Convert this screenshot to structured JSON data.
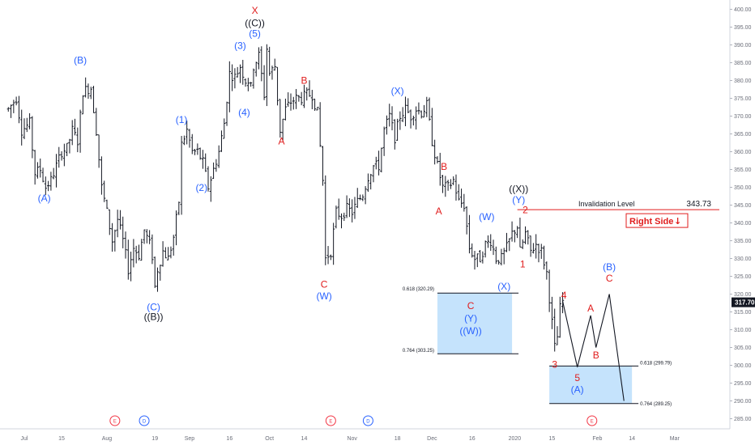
{
  "chart_data": {
    "type": "candlestick",
    "title": "",
    "xlabel": "",
    "ylabel": "",
    "ylim": [
      283,
      403
    ],
    "y_ticks": [
      "400.00",
      "395.00",
      "390.00",
      "385.00",
      "380.00",
      "375.00",
      "370.00",
      "365.00",
      "360.00",
      "355.00",
      "350.00",
      "345.00",
      "340.00",
      "335.00",
      "330.00",
      "325.00",
      "320.00",
      "315.00",
      "310.00",
      "305.00",
      "300.00",
      "295.00",
      "290.00",
      "285.00"
    ],
    "x_ticks": [
      {
        "label": "Jul",
        "d": 0
      },
      {
        "label": "15",
        "d": 14
      },
      {
        "label": "Aug",
        "d": 31
      },
      {
        "label": "19",
        "d": 49
      },
      {
        "label": "Sep",
        "d": 62
      },
      {
        "label": "16",
        "d": 77
      },
      {
        "label": "Oct",
        "d": 92
      },
      {
        "label": "14",
        "d": 105
      },
      {
        "label": "Nov",
        "d": 123
      },
      {
        "label": "18",
        "d": 140
      },
      {
        "label": "Dec",
        "d": 153
      },
      {
        "label": "16",
        "d": 168
      },
      {
        "label": "2020",
        "d": 184
      },
      {
        "label": "15",
        "d": 198
      },
      {
        "label": "Feb",
        "d": 215
      },
      {
        "label": "14",
        "d": 228
      },
      {
        "label": "Mar",
        "d": 244
      }
    ],
    "price_path": [
      [
        -6,
        372
      ],
      [
        -3,
        375
      ],
      [
        -1,
        366
      ],
      [
        2,
        368
      ],
      [
        4,
        354
      ],
      [
        6,
        355
      ],
      [
        8,
        350
      ],
      [
        10,
        352
      ],
      [
        12,
        356
      ],
      [
        14,
        360
      ],
      [
        16,
        361
      ],
      [
        18,
        366
      ],
      [
        20,
        363
      ],
      [
        22,
        377
      ],
      [
        25,
        378
      ],
      [
        27,
        366
      ],
      [
        29,
        350
      ],
      [
        31,
        343
      ],
      [
        33,
        335
      ],
      [
        35,
        341
      ],
      [
        37,
        335
      ],
      [
        39,
        327
      ],
      [
        41,
        333
      ],
      [
        43,
        331
      ],
      [
        45,
        338
      ],
      [
        47,
        334
      ],
      [
        48.5,
        329
      ],
      [
        49,
        322
      ],
      [
        50,
        327
      ],
      [
        52,
        332
      ],
      [
        54,
        330
      ],
      [
        56,
        336
      ],
      [
        58,
        346
      ],
      [
        59,
        362
      ],
      [
        61,
        366
      ],
      [
        63,
        360
      ],
      [
        65,
        360
      ],
      [
        67,
        357
      ],
      [
        69,
        350
      ],
      [
        71,
        355
      ],
      [
        73,
        360
      ],
      [
        75,
        368
      ],
      [
        77,
        382
      ],
      [
        79,
        381
      ],
      [
        81,
        384
      ],
      [
        83,
        380
      ],
      [
        84,
        380
      ],
      [
        85,
        378
      ],
      [
        86,
        384
      ],
      [
        88,
        387
      ],
      [
        90,
        376
      ],
      [
        91,
        389
      ],
      [
        92,
        382
      ],
      [
        94,
        384
      ],
      [
        96,
        366
      ],
      [
        98,
        372
      ],
      [
        100,
        374
      ],
      [
        102,
        375
      ],
      [
        104,
        375
      ],
      [
        106,
        376
      ],
      [
        108,
        376
      ],
      [
        110,
        371
      ],
      [
        112,
        352
      ],
      [
        113,
        330
      ],
      [
        115,
        332
      ],
      [
        117,
        343
      ],
      [
        119,
        342
      ],
      [
        121,
        344
      ],
      [
        123,
        343
      ],
      [
        125,
        346
      ],
      [
        127,
        348
      ],
      [
        129,
        353
      ],
      [
        131,
        356
      ],
      [
        133,
        356
      ],
      [
        135,
        366
      ],
      [
        137,
        370
      ],
      [
        139,
        364
      ],
      [
        141,
        370
      ],
      [
        143,
        372
      ],
      [
        145,
        370
      ],
      [
        147,
        372
      ],
      [
        149,
        371
      ],
      [
        151,
        373
      ],
      [
        153,
        363
      ],
      [
        155,
        356
      ],
      [
        157,
        350
      ],
      [
        159,
        350
      ],
      [
        161,
        352
      ],
      [
        163,
        346
      ],
      [
        165,
        345
      ],
      [
        167,
        333
      ],
      [
        169,
        330
      ],
      [
        171,
        330
      ],
      [
        173,
        334
      ],
      [
        175,
        335
      ],
      [
        177,
        330
      ],
      [
        179,
        330
      ],
      [
        181,
        333
      ],
      [
        183,
        337
      ],
      [
        185,
        339
      ],
      [
        186,
        332
      ],
      [
        188,
        337
      ],
      [
        190,
        332
      ],
      [
        192,
        334
      ],
      [
        194,
        332
      ],
      [
        196,
        326
      ],
      [
        198,
        312
      ],
      [
        199,
        305
      ],
      [
        200,
        308
      ],
      [
        201,
        316
      ],
      [
        202,
        318
      ]
    ],
    "wave_labels": [
      {
        "text": "(B)",
        "d": 21,
        "v": 385.5,
        "color": "#2962ff"
      },
      {
        "text": "(A)",
        "d": 7.5,
        "v": 346.7,
        "color": "#2962ff"
      },
      {
        "text": "(C)",
        "d": 48.5,
        "v": 316.2,
        "color": "#2962ff"
      },
      {
        "text": "((B))",
        "d": 48.5,
        "v": 313.5,
        "color": "#131722"
      },
      {
        "text": "(1)",
        "d": 59,
        "v": 368.8,
        "color": "#2962ff"
      },
      {
        "text": "(2)",
        "d": 66.5,
        "v": 349.7,
        "color": "#2962ff"
      },
      {
        "text": "(3)",
        "d": 81,
        "v": 389.6,
        "color": "#2962ff"
      },
      {
        "text": "(4)",
        "d": 82.5,
        "v": 370.8,
        "color": "#2962ff"
      },
      {
        "text": "(5)",
        "d": 86.5,
        "v": 393.0,
        "color": "#2962ff"
      },
      {
        "text": "((C))",
        "d": 86.5,
        "v": 396.0,
        "color": "#131722"
      },
      {
        "text": "X",
        "d": 86.5,
        "v": 399.5,
        "color": "#e01c1c"
      },
      {
        "text": "A",
        "d": 96.5,
        "v": 362.8,
        "color": "#e01c1c"
      },
      {
        "text": "B",
        "d": 105,
        "v": 379.8,
        "color": "#e01c1c"
      },
      {
        "text": "C",
        "d": 112.5,
        "v": 322.5,
        "color": "#e01c1c"
      },
      {
        "text": "(W)",
        "d": 112.5,
        "v": 319.3,
        "color": "#2962ff"
      },
      {
        "text": "(X)",
        "d": 140,
        "v": 376.9,
        "color": "#2962ff"
      },
      {
        "text": "A",
        "d": 155.5,
        "v": 343.1,
        "color": "#e01c1c"
      },
      {
        "text": "B",
        "d": 157.5,
        "v": 355.6,
        "color": "#e01c1c"
      },
      {
        "text": "C",
        "d": 167.5,
        "v": 316.5,
        "color": "#e01c1c"
      },
      {
        "text": "(Y)",
        "d": 167.5,
        "v": 313.0,
        "color": "#2962ff"
      },
      {
        "text": "((W))",
        "d": 167.5,
        "v": 309.5,
        "color": "#2962ff"
      },
      {
        "text": "(W)",
        "d": 173.5,
        "v": 341.5,
        "color": "#2962ff"
      },
      {
        "text": "(X)",
        "d": 180,
        "v": 322.0,
        "color": "#2962ff"
      },
      {
        "text": "((X))",
        "d": 185.5,
        "v": 349.4,
        "color": "#131722"
      },
      {
        "text": "(Y)",
        "d": 185.5,
        "v": 346.3,
        "color": "#2962ff"
      },
      {
        "text": "2",
        "d": 188,
        "v": 343.5,
        "color": "#e01c1c"
      },
      {
        "text": "1",
        "d": 187,
        "v": 328.2,
        "color": "#e01c1c"
      },
      {
        "text": "3",
        "d": 199,
        "v": 300.0,
        "color": "#e01c1c"
      },
      {
        "text": "4",
        "d": 202.5,
        "v": 319.5,
        "color": "#e01c1c"
      },
      {
        "text": "5",
        "d": 207.5,
        "v": 296.3,
        "color": "#e01c1c"
      },
      {
        "text": "(A)",
        "d": 207.5,
        "v": 293.0,
        "color": "#2962ff"
      },
      {
        "text": "A",
        "d": 212.5,
        "v": 315.8,
        "color": "#e01c1c"
      },
      {
        "text": "B",
        "d": 214.5,
        "v": 302.7,
        "color": "#e01c1c"
      },
      {
        "text": "(B)",
        "d": 219.5,
        "v": 327.4,
        "color": "#2962ff"
      },
      {
        "text": "C",
        "d": 219.5,
        "v": 324.2,
        "color": "#e01c1c"
      }
    ],
    "projection": [
      [
        202,
        318
      ],
      [
        207.5,
        299.5
      ],
      [
        212.5,
        314
      ],
      [
        214.5,
        305
      ],
      [
        219.5,
        320
      ],
      [
        225,
        290
      ]
    ],
    "fib_zones": [
      {
        "label_top": "0.618 (320.29)",
        "label_bottom": "0.764 (303.25)",
        "top": 320.29,
        "bottom": 303.25,
        "d_start": 155,
        "d_end": 183
      },
      {
        "label_top": "0.618 (299.79)",
        "label_bottom": "0.764 (289.25)",
        "top": 299.79,
        "bottom": 289.25,
        "d_start": 197,
        "d_end": 228
      }
    ],
    "invalidation": {
      "label": "Invalidation Level",
      "value_label": "343.73",
      "value": 343.73,
      "d_start": 185
    },
    "right_side": {
      "label": "Right Side",
      "arrow": "↓"
    },
    "current_price": {
      "label": "317.70",
      "value": 317.7
    },
    "events": [
      {
        "type": "E",
        "d": 34,
        "color": "#f23645"
      },
      {
        "type": "D",
        "d": 45,
        "color": "#2962ff"
      },
      {
        "type": "E",
        "d": 115,
        "color": "#f23645"
      },
      {
        "type": "D",
        "d": 129,
        "color": "#2962ff"
      },
      {
        "type": "E",
        "d": 213,
        "color": "#f23645"
      }
    ],
    "colors": {
      "up": "#131722",
      "wave_blue": "#2962ff",
      "wave_red": "#e01c1c",
      "zone": "#bbdefb",
      "price_tag": "#131722"
    }
  }
}
